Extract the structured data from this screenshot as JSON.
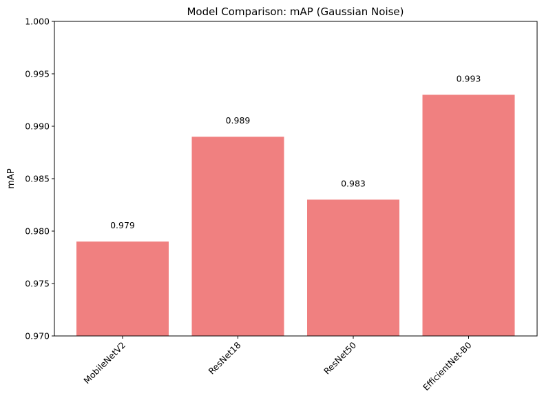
{
  "chart_data": {
    "type": "bar",
    "title": "Model Comparison: mAP (Gaussian Noise)",
    "xlabel": "",
    "ylabel": "mAP",
    "categories": [
      "MobileNetV2",
      "ResNet18",
      "ResNet50",
      "EfficientNet-B0"
    ],
    "values": [
      0.979,
      0.989,
      0.983,
      0.993
    ],
    "data_labels": [
      "0.979",
      "0.989",
      "0.983",
      "0.993"
    ],
    "ylim": [
      0.97,
      1.0
    ],
    "yticks": [
      0.97,
      0.975,
      0.98,
      0.985,
      0.99,
      0.995,
      1.0
    ],
    "ytick_labels": [
      "0.970",
      "0.975",
      "0.980",
      "0.985",
      "0.990",
      "0.995",
      "1.000"
    ],
    "bar_color": "#f08080",
    "grid": false,
    "x_tick_rotation_deg": 45
  }
}
